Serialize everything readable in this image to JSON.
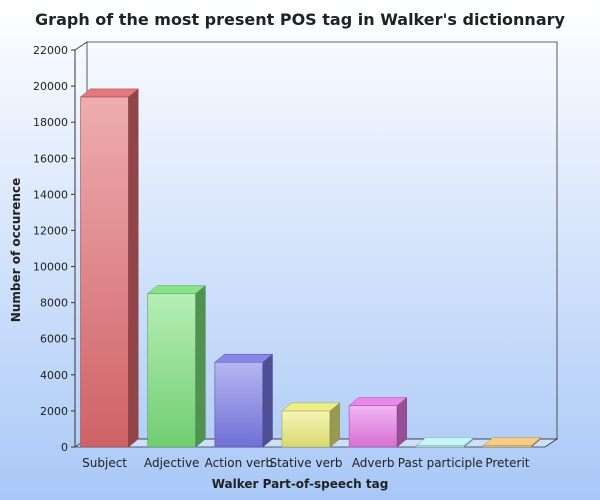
{
  "chart_data": {
    "type": "bar",
    "title": "Graph of the most present POS tag in Walker's dictionnary",
    "xlabel": "Walker Part-of-speech tag",
    "ylabel": "Number of occurence",
    "categories": [
      "Subject",
      "Adjective",
      "Action verb",
      "Stative verb",
      "Adverb",
      "Past participle",
      "Preterit"
    ],
    "values": [
      19400,
      8500,
      4700,
      2000,
      2300,
      50,
      30
    ],
    "colors": [
      "#e06a6f",
      "#7be07b",
      "#7a7ae8",
      "#ecec7a",
      "#e87ae8",
      "#bff3f3",
      "#f3c97a"
    ],
    "ylim": [
      0,
      22000
    ],
    "yticks": [
      0,
      2000,
      4000,
      6000,
      8000,
      10000,
      12000,
      14000,
      16000,
      18000,
      20000,
      22000
    ],
    "grid": false,
    "legend": "none",
    "style": "3d-columns",
    "background_gradient": [
      "#ffffff",
      "#a9c8f7"
    ]
  }
}
